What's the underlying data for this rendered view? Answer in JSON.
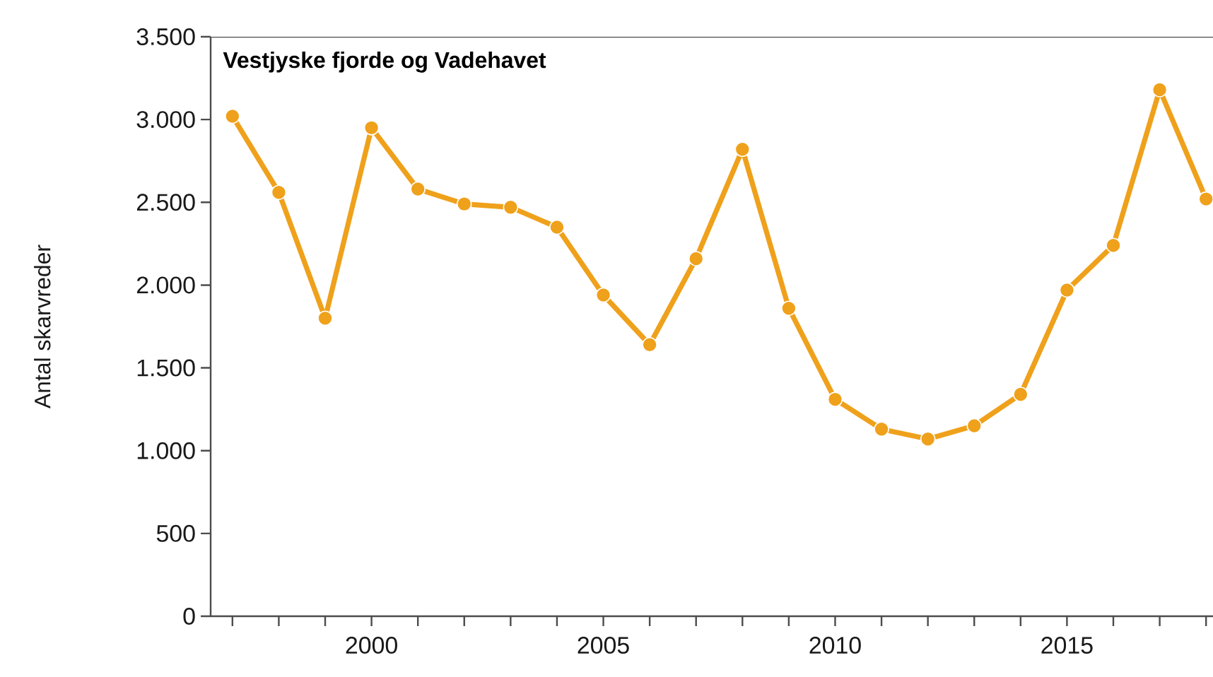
{
  "chart_data": {
    "type": "line",
    "title": "Vestjyske fjorde og Vadehavet",
    "ylabel": "Antal skarvreder",
    "x": [
      1997,
      1998,
      1999,
      2000,
      2001,
      2002,
      2003,
      2004,
      2005,
      2006,
      2007,
      2008,
      2009,
      2010,
      2011,
      2012,
      2013,
      2014,
      2015,
      2016,
      2017,
      2018
    ],
    "series": [
      {
        "color": "#efa11b",
        "values": [
          3020,
          2560,
          1800,
          2950,
          2580,
          2490,
          2470,
          2350,
          1940,
          1640,
          2160,
          2820,
          1860,
          1310,
          1130,
          1070,
          1150,
          1340,
          1970,
          2240,
          3180,
          2520
        ]
      }
    ],
    "xlim": [
      1996.53,
      2018.15
    ],
    "xticks": [
      {
        "value": 1997,
        "label": null
      },
      {
        "value": 1998,
        "label": null
      },
      {
        "value": 1999,
        "label": null
      },
      2000,
      {
        "value": 2001,
        "label": null
      },
      {
        "value": 2002,
        "label": null
      },
      {
        "value": 2003,
        "label": null
      },
      {
        "value": 2004,
        "label": null
      },
      2005,
      {
        "value": 2006,
        "label": null
      },
      {
        "value": 2007,
        "label": null
      },
      {
        "value": 2008,
        "label": null
      },
      {
        "value": 2009,
        "label": null
      },
      2010,
      {
        "value": 2011,
        "label": null
      },
      {
        "value": 2012,
        "label": null
      },
      {
        "value": 2013,
        "label": null
      },
      {
        "value": 2014,
        "label": null
      },
      2015,
      {
        "value": 2016,
        "label": null
      },
      {
        "value": 2017,
        "label": null
      },
      {
        "value": 2018,
        "label": null
      }
    ],
    "ylim": [
      0,
      3500
    ],
    "yticks": [
      0,
      500,
      {
        "value": 1000,
        "label": "1.000"
      },
      {
        "value": 1500,
        "label": "1.500"
      },
      {
        "value": 2000,
        "label": "2.000"
      },
      {
        "value": 2500,
        "label": "2.500"
      },
      {
        "value": 3000,
        "label": "3.000"
      },
      {
        "value": 3500,
        "label": "3.500"
      }
    ],
    "marker": "circle"
  }
}
